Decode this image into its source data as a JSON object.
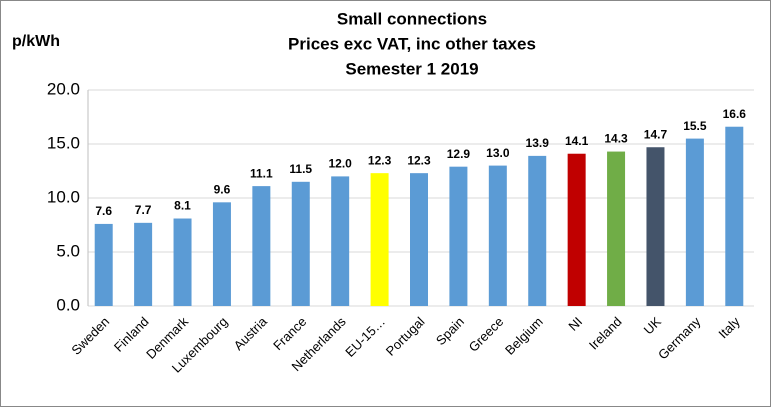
{
  "chart_data": {
    "type": "bar",
    "title": [
      "Small connections",
      "Prices exc VAT, inc other taxes",
      "Semester 1 2019"
    ],
    "y_label": "p/kWh",
    "categories": [
      "Sweden",
      "Finland",
      "Denmark",
      "Luxembourg",
      "Austria",
      "France",
      "Netherlands",
      "EU-15…",
      "Portugal",
      "Spain",
      "Greece",
      "Belgium",
      "NI",
      "Ireland",
      "UK",
      "Germany",
      "Italy"
    ],
    "values": [
      7.6,
      7.7,
      8.1,
      9.6,
      11.1,
      11.5,
      12.0,
      12.3,
      12.3,
      12.9,
      13.0,
      13.9,
      14.1,
      14.3,
      14.7,
      15.5,
      16.6
    ],
    "value_labels": [
      "7.6",
      "7.7",
      "8.1",
      "9.6",
      "11.1",
      "11.5",
      "12.0",
      "12.3",
      "12.3",
      "12.9",
      "13.0",
      "13.9",
      "14.1",
      "14.3",
      "14.7",
      "15.5",
      "16.6"
    ],
    "colors": [
      "#5b9bd5",
      "#5b9bd5",
      "#5b9bd5",
      "#5b9bd5",
      "#5b9bd5",
      "#5b9bd5",
      "#5b9bd5",
      "#ffff00",
      "#5b9bd5",
      "#5b9bd5",
      "#5b9bd5",
      "#5b9bd5",
      "#c00000",
      "#70ad47",
      "#44546a",
      "#5b9bd5",
      "#5b9bd5"
    ],
    "ylim": [
      0,
      20
    ],
    "yticks": [
      {
        "value": 0,
        "label": "0.0"
      },
      {
        "value": 5,
        "label": "5.0"
      },
      {
        "value": 10,
        "label": "10.0"
      },
      {
        "value": 15,
        "label": "15.0"
      },
      {
        "value": 20,
        "label": "20.0"
      }
    ],
    "grid": true
  }
}
